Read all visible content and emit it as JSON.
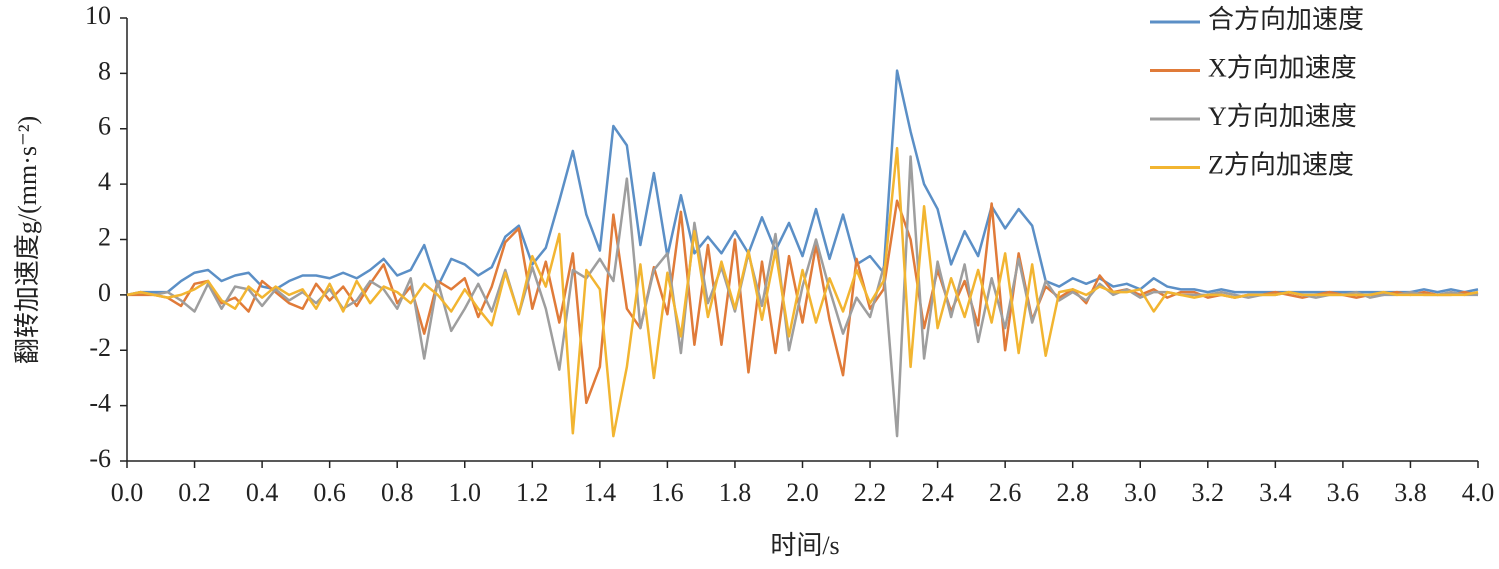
{
  "chart_data": {
    "type": "line",
    "xlabel": "时间/s",
    "ylabel": "翻转加速度g/(mm·s⁻²)",
    "x": [
      0,
      0.04,
      0.08,
      0.12,
      0.16,
      0.2,
      0.24,
      0.28,
      0.32,
      0.36,
      0.4,
      0.44,
      0.48,
      0.52,
      0.56,
      0.6,
      0.64,
      0.68,
      0.72,
      0.76,
      0.8,
      0.84,
      0.88,
      0.92,
      0.96,
      1,
      1.04,
      1.08,
      1.12,
      1.16,
      1.2,
      1.24,
      1.28,
      1.32,
      1.36,
      1.4,
      1.44,
      1.48,
      1.52,
      1.56,
      1.6,
      1.64,
      1.68,
      1.72,
      1.76,
      1.8,
      1.84,
      1.88,
      1.92,
      1.96,
      2,
      2.04,
      2.08,
      2.12,
      2.16,
      2.2,
      2.24,
      2.28,
      2.32,
      2.36,
      2.4,
      2.44,
      2.48,
      2.52,
      2.56,
      2.6,
      2.64,
      2.68,
      2.72,
      2.76,
      2.8,
      2.84,
      2.88,
      2.92,
      2.96,
      3,
      3.04,
      3.08,
      3.12,
      3.16,
      3.2,
      3.24,
      3.28,
      3.32,
      3.36,
      3.4,
      3.44,
      3.48,
      3.52,
      3.56,
      3.6,
      3.64,
      3.68,
      3.72,
      3.76,
      3.8,
      3.84,
      3.88,
      3.92,
      3.96,
      4
    ],
    "series": [
      {
        "name": "合方向加速度",
        "color": "#5b8fc6",
        "values": [
          0,
          0.1,
          0.1,
          0.1,
          0.5,
          0.8,
          0.9,
          0.5,
          0.7,
          0.8,
          0.3,
          0.2,
          0.5,
          0.7,
          0.7,
          0.6,
          0.8,
          0.6,
          0.9,
          1.3,
          0.7,
          0.9,
          1.8,
          0.3,
          1.3,
          1.1,
          0.7,
          1.0,
          2.1,
          2.5,
          1.1,
          1.7,
          3.4,
          5.2,
          2.9,
          1.6,
          6.1,
          5.4,
          1.8,
          4.4,
          1.4,
          3.6,
          1.5,
          2.1,
          1.5,
          2.3,
          1.5,
          2.8,
          1.6,
          2.6,
          1.4,
          3.1,
          1.3,
          2.9,
          1.1,
          1.4,
          0.8,
          8.1,
          5.9,
          4.0,
          3.1,
          1.1,
          2.3,
          1.4,
          3.2,
          2.4,
          3.1,
          2.5,
          0.5,
          0.3,
          0.6,
          0.4,
          0.6,
          0.3,
          0.4,
          0.2,
          0.6,
          0.3,
          0.2,
          0.2,
          0.1,
          0.2,
          0.1,
          0.1,
          0.1,
          0.1,
          0.1,
          0.1,
          0.1,
          0.1,
          0.1,
          0.1,
          0.1,
          0.1,
          0.1,
          0.1,
          0.2,
          0.1,
          0.2,
          0.1,
          0.2
        ]
      },
      {
        "name": "X方向加速度",
        "color": "#e07b39",
        "values": [
          0,
          0,
          0,
          -0.1,
          -0.4,
          0.4,
          0.5,
          -0.3,
          -0.1,
          -0.6,
          0.5,
          0.1,
          -0.3,
          -0.5,
          0.4,
          -0.2,
          0.3,
          -0.4,
          0.4,
          1.1,
          -0.3,
          0.3,
          -1.4,
          0.5,
          0.2,
          0.6,
          -0.8,
          0.3,
          1.9,
          2.4,
          -0.5,
          1.2,
          -1.0,
          1.5,
          -3.9,
          -2.6,
          2.9,
          -0.5,
          -1.2,
          1.0,
          -0.7,
          3.0,
          -1.8,
          1.8,
          -1.8,
          2.0,
          -2.8,
          1.2,
          -2.1,
          1.4,
          -1.0,
          1.8,
          -0.9,
          -2.9,
          1.3,
          -0.5,
          0.2,
          3.4,
          2.0,
          -1.2,
          0.9,
          -0.6,
          0.5,
          -1.1,
          3.3,
          -2.0,
          1.5,
          -0.9,
          0.3,
          -0.1,
          0.2,
          -0.3,
          0.7,
          0.1,
          0.2,
          0,
          0.2,
          -0.1,
          0.1,
          0.1,
          -0.1,
          0,
          -0.1,
          0,
          0,
          0.1,
          0,
          -0.1,
          0,
          0.1,
          0,
          -0.1,
          0,
          0,
          0.1,
          0,
          0.1,
          0,
          0,
          0.1,
          0
        ]
      },
      {
        "name": "Y方向加速度",
        "color": "#9e9e9e",
        "values": [
          0,
          0.1,
          0,
          0.1,
          -0.2,
          -0.6,
          0.4,
          -0.5,
          0.3,
          0.2,
          -0.4,
          0.2,
          -0.2,
          0.1,
          -0.3,
          0.2,
          -0.5,
          -0.2,
          0.5,
          0.2,
          -0.5,
          0.6,
          -2.3,
          0.5,
          -1.3,
          -0.5,
          0.4,
          -0.6,
          0.9,
          -0.7,
          1.0,
          -0.5,
          -2.7,
          0.9,
          0.6,
          1.3,
          0.5,
          4.2,
          -1.2,
          0.9,
          1.5,
          -2.1,
          2.6,
          -0.3,
          1.0,
          -0.6,
          1.5,
          -0.4,
          2.2,
          -2.0,
          0.3,
          2.0,
          0.2,
          -1.4,
          -0.1,
          -0.8,
          1.0,
          -5.1,
          5.0,
          -2.3,
          1.2,
          -0.8,
          1.1,
          -1.7,
          0.6,
          -1.2,
          1.3,
          -1.0,
          0.5,
          -0.2,
          0.1,
          -0.2,
          0.4,
          0,
          0.2,
          -0.1,
          0.1,
          0.1,
          0,
          0,
          0,
          0.1,
          0,
          -0.1,
          0,
          0,
          0.1,
          0,
          -0.1,
          0,
          0,
          0.1,
          -0.1,
          0,
          0,
          0.1,
          0,
          0,
          0.1,
          0,
          0
        ]
      },
      {
        "name": "Z方向加速度",
        "color": "#f2b531",
        "values": [
          0,
          0.1,
          0,
          -0.1,
          0,
          0.2,
          0.5,
          -0.2,
          -0.5,
          0.3,
          -0.1,
          0.3,
          0,
          0.2,
          -0.5,
          0.4,
          -0.6,
          0.5,
          -0.3,
          0.3,
          0.1,
          -0.3,
          0.4,
          0,
          -0.6,
          0.2,
          -0.5,
          -1.1,
          0.8,
          -0.7,
          1.4,
          0.3,
          2.2,
          -5.0,
          0.9,
          0.2,
          -5.1,
          -2.6,
          1.1,
          -3.0,
          0.8,
          -1.5,
          2.3,
          -0.8,
          1.2,
          -0.5,
          1.6,
          -0.9,
          1.6,
          -1.5,
          0.9,
          -1.0,
          0.6,
          -0.6,
          0.9,
          -0.3,
          0.5,
          5.3,
          -2.6,
          3.2,
          -1.2,
          0.6,
          -0.8,
          0.9,
          -1.0,
          1.5,
          -2.1,
          1.1,
          -2.2,
          0.1,
          0.2,
          0,
          0.3,
          0.1,
          0.1,
          0.2,
          -0.6,
          0.1,
          0,
          -0.1,
          0,
          0,
          -0.1,
          0,
          0,
          0,
          0.1,
          0,
          0,
          0,
          0,
          0,
          0,
          0.1,
          0,
          0,
          0,
          0,
          0,
          0,
          0.1
        ]
      }
    ],
    "xlim": [
      0,
      4
    ],
    "xticks": [
      {
        "value": 0,
        "label": "0.0"
      },
      0.2,
      0.4,
      0.6,
      0.8,
      {
        "value": 1,
        "label": "1.0"
      },
      1.2,
      1.4,
      1.6,
      1.8,
      {
        "value": 2,
        "label": "2.0"
      },
      2.2,
      2.4,
      2.6,
      2.8,
      {
        "value": 3,
        "label": "3.0"
      },
      3.2,
      3.4,
      3.6,
      3.8,
      {
        "value": 4,
        "label": "4.0"
      }
    ],
    "ylim": [
      -6,
      10
    ],
    "yticks": [
      -6,
      -4,
      -2,
      0,
      2,
      4,
      6,
      8,
      10
    ],
    "grid": false,
    "legend": "upper right"
  }
}
